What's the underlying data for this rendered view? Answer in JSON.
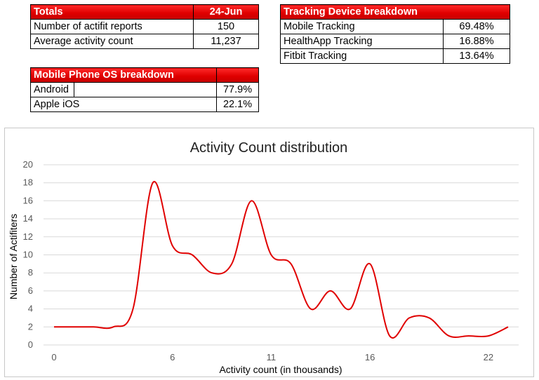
{
  "totals": {
    "header_label": "Totals",
    "header_date": "24-Jun",
    "rows": [
      {
        "label": "Number of actifit reports",
        "value": "150"
      },
      {
        "label": "Average activity count",
        "value": "11,237"
      }
    ]
  },
  "tracking": {
    "header_label": "Tracking Device breakdown",
    "rows": [
      {
        "label": "Mobile Tracking",
        "value": "69.48%"
      },
      {
        "label": "HealthApp Tracking",
        "value": "16.88%"
      },
      {
        "label": "Fitbit Tracking",
        "value": "13.64%"
      }
    ]
  },
  "os": {
    "header_label": "Mobile Phone OS breakdown",
    "rows": [
      {
        "label": "Android",
        "value": "77.9%"
      },
      {
        "label": "Apple iOS",
        "value": "22.1%"
      }
    ]
  },
  "colors": {
    "line": "#e00000",
    "grid": "#d9d9d9",
    "axis_text": "#595959"
  },
  "chart_data": {
    "type": "line",
    "title": "Activity Count distribution",
    "xlabel": "Activity count (in thousands)",
    "ylabel": "Number of Actifiters",
    "xlim": [
      0,
      23
    ],
    "ylim": [
      0,
      20
    ],
    "x_ticks": [
      0,
      6,
      11,
      16,
      22
    ],
    "y_ticks": [
      0,
      2,
      4,
      6,
      8,
      10,
      12,
      14,
      16,
      18,
      20
    ],
    "grid": "horizontal",
    "smooth": true,
    "series": [
      {
        "x": [
          0,
          1,
          2,
          3,
          4,
          5,
          6,
          7,
          8,
          9,
          10,
          11,
          12,
          13,
          14,
          15,
          16,
          17,
          18,
          19,
          20,
          21,
          22,
          23
        ],
        "y": [
          2,
          2,
          2,
          2,
          4,
          18,
          11,
          10,
          8,
          9,
          16,
          10,
          9,
          4,
          6,
          4,
          9,
          1,
          3,
          3,
          1,
          1,
          1,
          2
        ]
      }
    ]
  }
}
